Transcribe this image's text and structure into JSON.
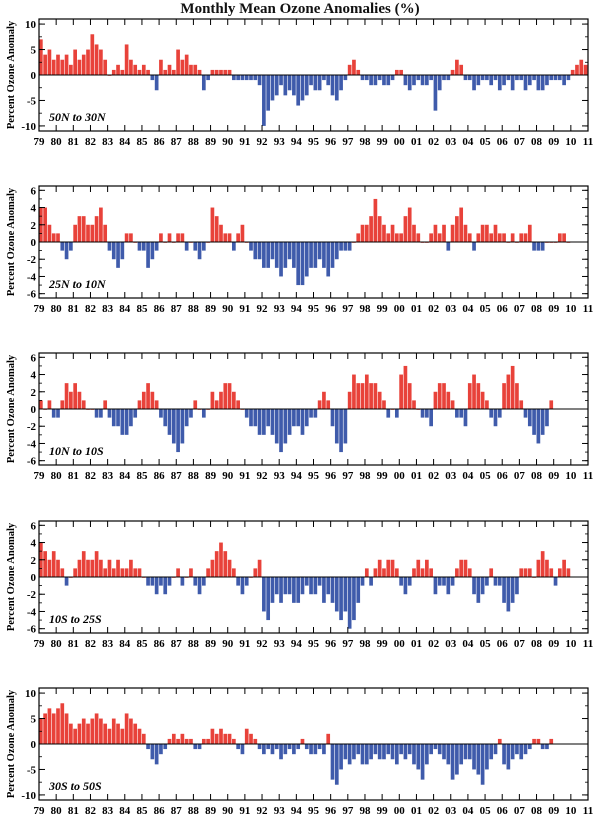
{
  "title": "Monthly Mean Ozone Anomalies (%)",
  "colors": {
    "positive": "#e8423a",
    "negative": "#3f5bab",
    "frame": "#000000"
  },
  "chart_data": [
    {
      "type": "bar",
      "label": "50N to 30N",
      "ylabel": "Percent Ozone Anomaly",
      "ylim": [
        -11,
        11
      ],
      "yticks": [
        -10,
        -5,
        0,
        5,
        10
      ],
      "xticks": [
        "79",
        "80",
        "81",
        "82",
        "83",
        "84",
        "85",
        "86",
        "87",
        "88",
        "89",
        "90",
        "91",
        "92",
        "93",
        "94",
        "95",
        "96",
        "97",
        "98",
        "99",
        "00",
        "01",
        "02",
        "03",
        "04",
        "05",
        "06",
        "07",
        "08",
        "09",
        "10",
        "11"
      ],
      "x_start": 1979,
      "x_end": 2011,
      "series_start": 1979.0,
      "step": 0.25,
      "values": [
        7,
        4,
        5,
        3,
        4,
        3,
        4,
        2,
        5,
        3,
        4,
        5,
        8,
        6,
        5,
        3,
        0,
        1,
        2,
        1,
        6,
        3,
        2,
        1,
        2,
        1,
        -1,
        -3,
        3,
        1,
        2,
        1,
        5,
        3,
        4,
        2,
        2,
        1,
        -3,
        -1,
        1,
        1,
        1,
        1,
        1,
        -1,
        -1,
        -1,
        -1,
        -1,
        -1,
        -2,
        -10,
        -7,
        -5,
        -4,
        -2,
        -4,
        -3,
        -4,
        -6,
        -5,
        -4,
        -2,
        -3,
        -3,
        -1,
        -2,
        -4,
        -5,
        -3,
        -1,
        2,
        3,
        1,
        -1,
        -1,
        -2,
        -2,
        -1,
        -2,
        -2,
        -1,
        1,
        1,
        -2,
        -3,
        -2,
        -1,
        -2,
        -2,
        -1,
        -7,
        -3,
        -1,
        -1,
        1,
        3,
        2,
        -1,
        -1,
        -3,
        -2,
        -1,
        -1,
        -2,
        -1,
        -3,
        -2,
        -1,
        -3,
        -1,
        -1,
        -3,
        -2,
        -1,
        -3,
        -3,
        -2,
        -1,
        -1,
        -1,
        -2,
        -1,
        1,
        2,
        3,
        2
      ]
    },
    {
      "type": "bar",
      "label": "25N to 10N",
      "ylabel": "Percent Ozone Anomaly",
      "ylim": [
        -6.5,
        6.5
      ],
      "yticks": [
        -6,
        -4,
        -2,
        0,
        2,
        4,
        6
      ],
      "xticks": [
        "79",
        "80",
        "81",
        "82",
        "83",
        "84",
        "85",
        "86",
        "87",
        "88",
        "89",
        "90",
        "91",
        "92",
        "93",
        "94",
        "95",
        "96",
        "97",
        "98",
        "99",
        "00",
        "01",
        "02",
        "03",
        "04",
        "05",
        "06",
        "07",
        "08",
        "09",
        "10",
        "11"
      ],
      "x_start": 1979,
      "x_end": 2011,
      "series_start": 1979.0,
      "step": 0.25,
      "values": [
        4,
        4,
        2,
        1,
        1,
        -1,
        -2,
        -1,
        2,
        3,
        3,
        2,
        2,
        3,
        4,
        2,
        -1,
        -2,
        -3,
        -2,
        1,
        1,
        0,
        -1,
        -1,
        -3,
        -2,
        -1,
        1,
        0,
        1,
        0,
        1,
        1,
        -1,
        0,
        -1,
        -2,
        -1,
        0,
        4,
        3,
        2,
        1,
        1,
        -1,
        1,
        2,
        0,
        -1,
        -2,
        -2,
        -3,
        -3,
        -2,
        -3,
        -4,
        -3,
        -2,
        -3,
        -5,
        -5,
        -4,
        -3,
        -3,
        -2,
        -3,
        -4,
        -3,
        -2,
        -1,
        -1,
        -1,
        0,
        1,
        2,
        2,
        3,
        5,
        3,
        2,
        1,
        2,
        1,
        1,
        3,
        4,
        2,
        1,
        0,
        0,
        1,
        2,
        1,
        2,
        -1,
        2,
        3,
        4,
        2,
        1,
        -1,
        1,
        2,
        2,
        1,
        2,
        1,
        1,
        0,
        1,
        0,
        1,
        1,
        2,
        -1,
        -1,
        -1,
        0,
        0,
        0,
        1,
        1,
        0
      ]
    },
    {
      "type": "bar",
      "label": "10N to 10S",
      "ylabel": "Percent Ozone Anomaly",
      "ylim": [
        -6.5,
        6.5
      ],
      "yticks": [
        -6,
        -4,
        -2,
        0,
        2,
        4,
        6
      ],
      "xticks": [
        "79",
        "80",
        "81",
        "82",
        "83",
        "84",
        "85",
        "86",
        "87",
        "88",
        "89",
        "90",
        "91",
        "92",
        "93",
        "94",
        "95",
        "96",
        "97",
        "98",
        "99",
        "00",
        "01",
        "02",
        "03",
        "04",
        "05",
        "06",
        "07",
        "08",
        "09",
        "10",
        "11"
      ],
      "x_start": 1979,
      "x_end": 2011,
      "series_start": 1979.0,
      "step": 0.25,
      "values": [
        1,
        0,
        1,
        -1,
        -1,
        1,
        3,
        2,
        3,
        2,
        1,
        0,
        0,
        -1,
        -1,
        1,
        -1,
        -2,
        -2,
        -3,
        -3,
        -2,
        -1,
        1,
        2,
        3,
        2,
        1,
        -1,
        -2,
        -3,
        -4,
        -5,
        -4,
        -2,
        -1,
        1,
        0,
        -1,
        0,
        2,
        1,
        2,
        3,
        3,
        2,
        1,
        0,
        -1,
        -2,
        -2,
        -3,
        -3,
        -2,
        -3,
        -4,
        -5,
        -4,
        -3,
        -2,
        -2,
        -3,
        -2,
        -1,
        -1,
        1,
        2,
        1,
        -2,
        -4,
        -5,
        -4,
        2,
        4,
        3,
        3,
        4,
        3,
        3,
        2,
        1,
        -1,
        0,
        -1,
        4,
        5,
        3,
        1,
        0,
        -1,
        -1,
        -2,
        2,
        3,
        3,
        2,
        1,
        -1,
        -1,
        -2,
        3,
        4,
        3,
        2,
        1,
        -1,
        -2,
        -1,
        3,
        4,
        5,
        3,
        1,
        -1,
        -2,
        -3,
        -4,
        -3,
        -2,
        1
      ]
    },
    {
      "type": "bar",
      "label": "10S to 25S",
      "ylabel": "Percent Ozone Anomaly",
      "ylim": [
        -6.5,
        6.5
      ],
      "yticks": [
        -6,
        -4,
        -2,
        0,
        2,
        4,
        6
      ],
      "xticks": [
        "79",
        "80",
        "81",
        "82",
        "83",
        "84",
        "85",
        "86",
        "87",
        "88",
        "89",
        "90",
        "91",
        "92",
        "93",
        "94",
        "95",
        "96",
        "97",
        "98",
        "99",
        "00",
        "01",
        "02",
        "03",
        "04",
        "05",
        "06",
        "07",
        "08",
        "09",
        "10",
        "11"
      ],
      "x_start": 1979,
      "x_end": 2011,
      "series_start": 1979.0,
      "step": 0.25,
      "values": [
        4,
        3,
        2,
        3,
        2,
        1,
        -1,
        0,
        1,
        2,
        3,
        2,
        2,
        3,
        2,
        1,
        2,
        1,
        2,
        1,
        1,
        2,
        1,
        1,
        0,
        -1,
        -1,
        -2,
        -1,
        -2,
        -1,
        0,
        1,
        -1,
        0,
        1,
        -1,
        -2,
        -1,
        1,
        2,
        3,
        4,
        3,
        2,
        1,
        -1,
        -2,
        -1,
        0,
        1,
        2,
        -4,
        -5,
        -3,
        -2,
        -3,
        -2,
        -2,
        -3,
        -3,
        -2,
        -1,
        -2,
        -2,
        -1,
        -3,
        -2,
        -3,
        -4,
        -5,
        -4,
        -6,
        -5,
        -3,
        -1,
        1,
        -1,
        1,
        2,
        1,
        2,
        2,
        1,
        -1,
        -2,
        -1,
        1,
        2,
        1,
        2,
        1,
        -2,
        -1,
        -1,
        -2,
        -1,
        1,
        2,
        2,
        1,
        -2,
        -3,
        -2,
        -1,
        1,
        -1,
        -1,
        -3,
        -4,
        -3,
        -2,
        1,
        1,
        1,
        0,
        2,
        3,
        2,
        1,
        -1,
        1,
        2,
        1
      ]
    },
    {
      "type": "bar",
      "label": "30S to 50S",
      "ylabel": "Percent Ozone Anomaly",
      "ylim": [
        -11,
        11
      ],
      "yticks": [
        -10,
        -5,
        0,
        5,
        10
      ],
      "xticks": [
        "79",
        "80",
        "81",
        "82",
        "83",
        "84",
        "85",
        "86",
        "87",
        "88",
        "89",
        "90",
        "91",
        "92",
        "93",
        "94",
        "95",
        "96",
        "97",
        "98",
        "99",
        "00",
        "01",
        "02",
        "03",
        "04",
        "05",
        "06",
        "07",
        "08",
        "09",
        "10",
        "11"
      ],
      "x_start": 1979,
      "x_end": 2011,
      "series_start": 1979.0,
      "step": 0.25,
      "values": [
        5,
        6,
        7,
        6,
        7,
        8,
        6,
        4,
        3,
        4,
        5,
        4,
        5,
        6,
        5,
        4,
        3,
        5,
        4,
        3,
        6,
        5,
        4,
        3,
        2,
        -1,
        -3,
        -4,
        -2,
        -1,
        1,
        2,
        1,
        2,
        1,
        1,
        -1,
        -1,
        1,
        1,
        3,
        2,
        3,
        2,
        2,
        1,
        -1,
        -2,
        3,
        2,
        1,
        -1,
        -2,
        -1,
        -2,
        -1,
        -3,
        -2,
        -1,
        -2,
        -1,
        1,
        -1,
        -2,
        -2,
        -1,
        -2,
        2,
        -7,
        -8,
        -5,
        -3,
        -4,
        -3,
        -2,
        -4,
        -4,
        -3,
        -2,
        -3,
        -3,
        -2,
        -3,
        -4,
        -2,
        -3,
        -2,
        -4,
        -5,
        -7,
        -4,
        -2,
        -1,
        -2,
        -3,
        -4,
        -7,
        -6,
        -4,
        -3,
        -3,
        -5,
        -6,
        -8,
        -5,
        -3,
        -2,
        1,
        -4,
        -5,
        -3,
        -2,
        -3,
        -2,
        -1,
        1,
        1,
        -1,
        -1,
        1
      ]
    }
  ]
}
